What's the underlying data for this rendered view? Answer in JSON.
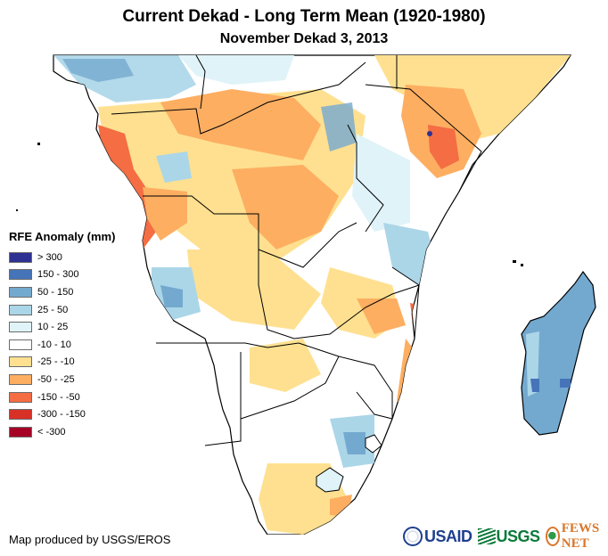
{
  "title": "Current Dekad - Long Term Mean (1920-1980)",
  "subtitle": "November Dekad 3, 2013",
  "legend": {
    "title": "RFE Anomaly (mm)",
    "items": [
      {
        "label": "> 300",
        "color": "#2e3192"
      },
      {
        "label": "150 - 300",
        "color": "#4674b9"
      },
      {
        "label": "50 - 150",
        "color": "#74a9cf"
      },
      {
        "label": "25 - 50",
        "color": "#abd6e8"
      },
      {
        "label": "10 - 25",
        "color": "#e0f3f8"
      },
      {
        "label": "-10 - 10",
        "color": "#ffffff"
      },
      {
        "label": "-25 - -10",
        "color": "#fee090"
      },
      {
        "label": "-50 - -25",
        "color": "#fdae61"
      },
      {
        "label": "-150 - -50",
        "color": "#f46d43"
      },
      {
        "label": "-300 - -150",
        "color": "#d73027"
      },
      {
        "label": "< -300",
        "color": "#a50026"
      }
    ]
  },
  "credit": "Map produced by USGS/EROS",
  "logos": {
    "usaid": "USAID",
    "usgs": "USGS",
    "fewsnet": "FEWS NET"
  },
  "map_colors": {
    "ocean": "#ffffff",
    "border": "#000000",
    "wet_light": "#e0f3f8",
    "wet_mid": "#abd6e8",
    "wet": "#74a9cf",
    "wet_strong": "#4674b9",
    "dry_light": "#fee090",
    "dry_mid": "#fdae61",
    "dry": "#f46d43"
  }
}
